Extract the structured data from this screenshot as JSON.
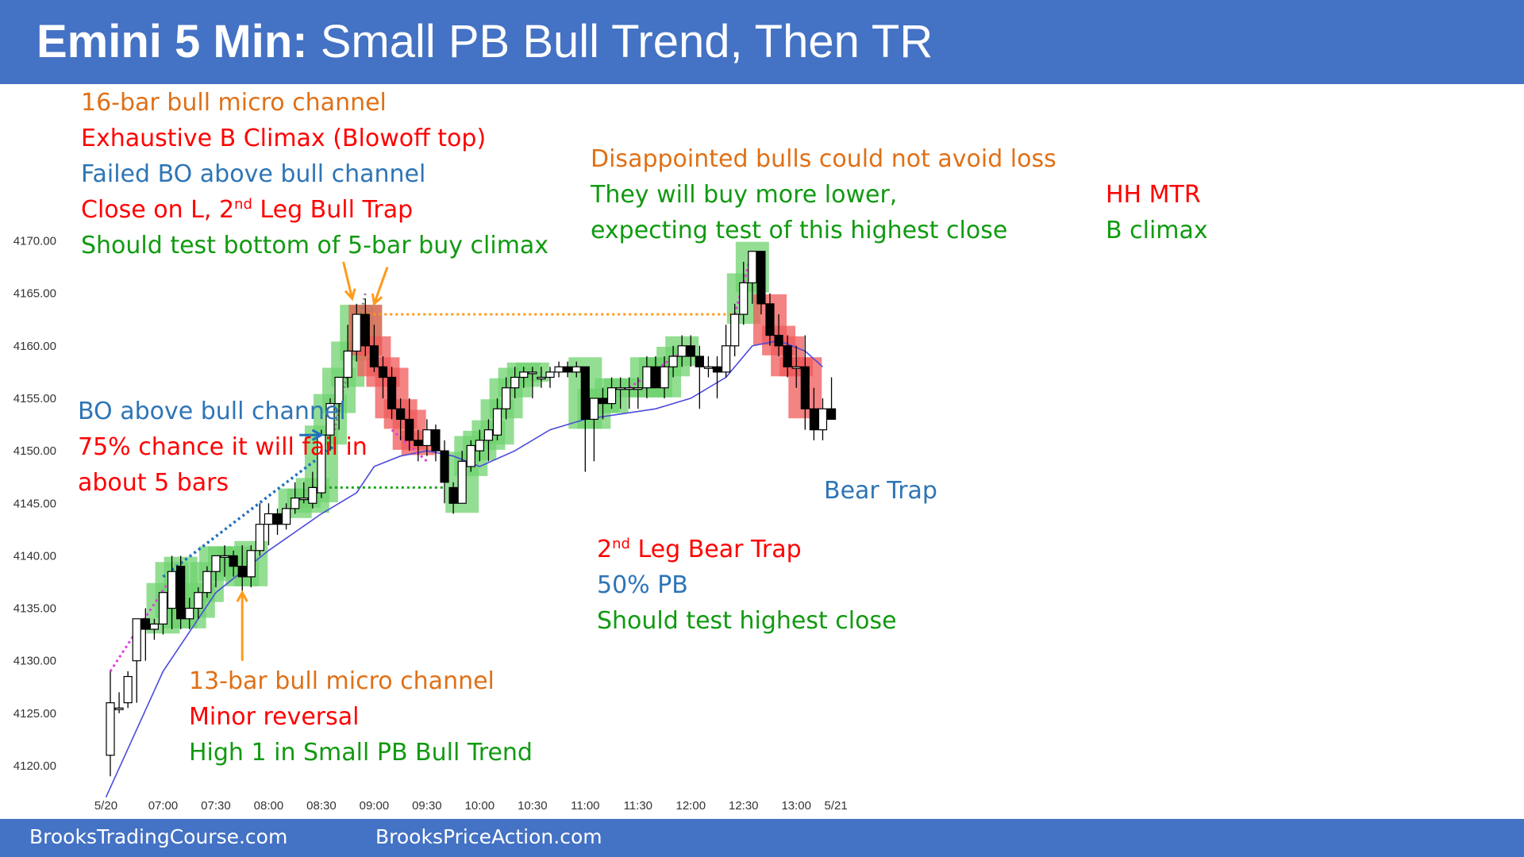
{
  "header": {
    "title_bold": "Emini 5 Min:",
    "title_rest": "Small PB Bull Trend, Then TR"
  },
  "footer": {
    "left": "BrooksTradingCourse.com",
    "right": "BrooksPriceAction.com"
  },
  "colors": {
    "header": "#4472c4",
    "bull_body": "#ffffff",
    "bear_body": "#000000",
    "green_highlight": "#6fd36f",
    "red_highlight": "#f05a5a",
    "ema": "#4b4bdc",
    "orange_line": "#ff9a1a",
    "green_line": "#1aa51a",
    "blue_line": "#1f6fbf",
    "magenta_line": "#e040e0",
    "gray_line": "#808080",
    "arrow_orange": "#ff9a1a",
    "arrow_blue": "#1f6fbf"
  },
  "annotations": {
    "a1": {
      "l1": "16-bar bull micro channel",
      "l2": "Exhaustive B Climax (Blowoff top)",
      "l3": "Failed BO above bull channel",
      "l4a": "Close on L, 2",
      "l4sup": "nd",
      "l4b": " Leg Bull Trap",
      "l5": "Should test bottom of 5-bar buy climax"
    },
    "a2": {
      "l1": "Disappointed bulls could not avoid loss",
      "l2": "They will buy more lower,",
      "l3": "expecting test of this highest close"
    },
    "a3": {
      "l1": "HH MTR",
      "l2": "B climax"
    },
    "a4": {
      "l1": "BO above bull channel",
      "l2": "75% chance it will fail in",
      "l3": "about 5 bars"
    },
    "a5": {
      "l1": "Bear Trap"
    },
    "a6": {
      "l1a": "2",
      "l1sup": "nd",
      "l1b": " Leg Bear Trap",
      "l2": "50% PB",
      "l3": "Should test highest close"
    },
    "a7": {
      "l1": "13-bar bull micro channel",
      "l2": "Minor reversal",
      "l3": "High 1 in Small PB Bull Trend"
    }
  },
  "chart_data": {
    "type": "candlestick",
    "y_ticks": [
      "4170.00",
      "4165.00",
      "4160.00",
      "4155.00",
      "4150.00",
      "4145.00",
      "4140.00",
      "4135.00",
      "4130.00",
      "4125.00",
      "4120.00"
    ],
    "y_tick_values": [
      4170,
      4165,
      4160,
      4155,
      4150,
      4145,
      4140,
      4135,
      4130,
      4125,
      4120
    ],
    "ylim": [
      4118,
      4172
    ],
    "x_ticks": [
      "5/20",
      "07:00",
      "07:30",
      "08:00",
      "08:30",
      "09:00",
      "09:30",
      "10:00",
      "10:30",
      "11:00",
      "11:30",
      "12:00",
      "12:30",
      "13:00",
      "5/21"
    ],
    "x_tick_bars": [
      -0.5,
      6,
      12,
      18,
      24,
      30,
      36,
      42,
      48,
      54,
      60,
      66,
      72,
      78,
      82.5
    ],
    "bars": [
      [
        4121,
        4129,
        4119,
        4126
      ],
      [
        4125.5,
        4127,
        4125,
        4125.5
      ],
      [
        4126,
        4129,
        4125.5,
        4128.5
      ],
      [
        4130,
        4134,
        4126,
        4134
      ],
      [
        4134,
        4135,
        4130,
        4133
      ],
      [
        4133,
        4134,
        4132,
        4133.5
      ],
      [
        4133.5,
        4136,
        4132.5,
        4136.5
      ],
      [
        4135,
        4140,
        4133,
        4138.5
      ],
      [
        4139,
        4140,
        4133,
        4134
      ],
      [
        4134,
        4136,
        4133,
        4135
      ],
      [
        4135,
        4137,
        4134,
        4136.5
      ],
      [
        4136.5,
        4139,
        4136,
        4138.5
      ],
      [
        4138.5,
        4140,
        4137,
        4140
      ],
      [
        4140,
        4141,
        4138,
        4140
      ],
      [
        4140,
        4140.5,
        4138,
        4139
      ],
      [
        4139,
        4141,
        4136,
        4138
      ],
      [
        4138,
        4141,
        4137,
        4140.5
      ],
      [
        4140.5,
        4145,
        4140,
        4143
      ],
      [
        4143,
        4145,
        4141,
        4144
      ],
      [
        4144,
        4144.5,
        4142,
        4143
      ],
      [
        4143,
        4145,
        4142.5,
        4144.5
      ],
      [
        4144.5,
        4147,
        4144,
        4145.5
      ],
      [
        4145.5,
        4147,
        4145,
        4145.5
      ],
      [
        4145,
        4148,
        4144.5,
        4146.5
      ],
      [
        4146,
        4152,
        4145.5,
        4151.5
      ],
      [
        4151.5,
        4155,
        4150,
        4154.5
      ],
      [
        4154.5,
        4157,
        4152,
        4157
      ],
      [
        4157,
        4162,
        4156,
        4159.5
      ],
      [
        4159.5,
        4164,
        4158.5,
        4163
      ],
      [
        4163,
        4164.5,
        4159,
        4160
      ],
      [
        4160,
        4162,
        4157.5,
        4158
      ],
      [
        4158,
        4159,
        4155,
        4157
      ],
      [
        4157,
        4158,
        4153,
        4154
      ],
      [
        4154,
        4155,
        4151,
        4153
      ],
      [
        4153,
        4155,
        4150,
        4151
      ],
      [
        4151,
        4152,
        4149,
        4150.5
      ],
      [
        4150.5,
        4153,
        4149.5,
        4152
      ],
      [
        4152,
        4152.5,
        4149,
        4150
      ],
      [
        4150,
        4151,
        4145,
        4147
      ],
      [
        4146.5,
        4147,
        4144,
        4145
      ],
      [
        4145,
        4150,
        4145,
        4149
      ],
      [
        4148.5,
        4151,
        4148,
        4150.5
      ],
      [
        4150,
        4152,
        4149,
        4151
      ],
      [
        4151,
        4153,
        4149,
        4152
      ],
      [
        4151.5,
        4155,
        4151,
        4154
      ],
      [
        4154,
        4157,
        4153,
        4156
      ],
      [
        4156,
        4158,
        4155,
        4157
      ],
      [
        4157,
        4158,
        4156,
        4157.5
      ],
      [
        4157.5,
        4158,
        4155,
        4157.5
      ],
      [
        4157,
        4158,
        4156,
        4157
      ],
      [
        4157,
        4158,
        4156,
        4157.5
      ],
      [
        4157.5,
        4158.5,
        4157,
        4158
      ],
      [
        4158,
        4158.5,
        4157,
        4157.5
      ],
      [
        4157.5,
        4158.5,
        4157,
        4158
      ],
      [
        4158,
        4158,
        4148,
        4153
      ],
      [
        4153,
        4155,
        4149,
        4155
      ],
      [
        4155,
        4156,
        4153,
        4154.5
      ],
      [
        4154.5,
        4157,
        4154,
        4156
      ],
      [
        4156,
        4157,
        4154,
        4156
      ],
      [
        4156,
        4157,
        4154,
        4156
      ],
      [
        4156,
        4157,
        4154,
        4156
      ],
      [
        4156,
        4159,
        4155,
        4158
      ],
      [
        4158,
        4159,
        4156,
        4156
      ],
      [
        4156,
        4159,
        4155,
        4158
      ],
      [
        4158,
        4160,
        4157,
        4159
      ],
      [
        4159,
        4161,
        4158,
        4160
      ],
      [
        4160,
        4161,
        4158,
        4159
      ],
      [
        4159,
        4160,
        4154,
        4158
      ],
      [
        4158,
        4159,
        4157,
        4158
      ],
      [
        4158,
        4159,
        4155,
        4157.5
      ],
      [
        4157.5,
        4162,
        4157,
        4160
      ],
      [
        4160,
        4164,
        4159,
        4163
      ],
      [
        4163,
        4168,
        4162,
        4166
      ],
      [
        4166,
        4169,
        4164,
        4169
      ],
      [
        4169,
        4169,
        4163,
        4164
      ],
      [
        4164,
        4165,
        4160,
        4161
      ],
      [
        4161,
        4163,
        4159,
        4160
      ],
      [
        4160,
        4161,
        4157,
        4158
      ],
      [
        4158,
        4160,
        4156,
        4158
      ],
      [
        4158,
        4161,
        4152,
        4154
      ],
      [
        4154,
        4156,
        4151,
        4152
      ],
      [
        4152,
        4155,
        4151,
        4154
      ],
      [
        4154,
        4157,
        4153,
        4153
      ]
    ],
    "green_highlight_bars": [
      6,
      7,
      8,
      9,
      10,
      11,
      12,
      13,
      14,
      15,
      16,
      21,
      22,
      23,
      24,
      25,
      26,
      27,
      28,
      29,
      40,
      41,
      42,
      43,
      44,
      45,
      46,
      47,
      48,
      54,
      55,
      56,
      57,
      58,
      61,
      62,
      63,
      64,
      65,
      72,
      73
    ],
    "red_highlight_bars": [
      29,
      30,
      31,
      32,
      33,
      34,
      35,
      75,
      76,
      77,
      78,
      79
    ],
    "ema": [
      [
        -0.5,
        4117
      ],
      [
        6,
        4129
      ],
      [
        12,
        4136.5
      ],
      [
        18,
        4140.5
      ],
      [
        24,
        4144
      ],
      [
        26,
        4145
      ],
      [
        28,
        4146
      ],
      [
        30,
        4148.5
      ],
      [
        33,
        4149.5
      ],
      [
        36,
        4150
      ],
      [
        39,
        4149.5
      ],
      [
        42,
        4148.5
      ],
      [
        46,
        4150
      ],
      [
        50,
        4152
      ],
      [
        54,
        4153
      ],
      [
        58,
        4153.5
      ],
      [
        62,
        4154
      ],
      [
        66,
        4155
      ],
      [
        70,
        4157
      ],
      [
        73,
        4160
      ],
      [
        76,
        4160.5
      ],
      [
        79,
        4159.5
      ],
      [
        81,
        4158
      ]
    ],
    "lines": [
      {
        "style": "orange-dotted",
        "from": [
          28,
          4163
        ],
        "to": [
          71,
          4163
        ]
      },
      {
        "style": "green-dotted",
        "from": [
          23,
          4146.5
        ],
        "to": [
          38,
          4146.5
        ]
      },
      {
        "style": "blue-dotted",
        "from": [
          6,
          4138
        ],
        "to": [
          25.5,
          4150.5
        ]
      },
      {
        "style": "magenta-dotted",
        "from": [
          0,
          4129
        ],
        "to": [
          7,
          4138
        ]
      },
      {
        "style": "magenta-dotted",
        "from": [
          32,
          4152
        ],
        "to": [
          36,
          4149
        ]
      },
      {
        "style": "magenta-dotted",
        "from": [
          59,
          4156
        ],
        "to": [
          66,
          4160
        ]
      },
      {
        "style": "magenta-dotted",
        "from": [
          71,
          4163
        ],
        "to": [
          73,
          4169
        ]
      },
      {
        "style": "gray-dotted",
        "from": [
          25.5,
          4152
        ],
        "to": [
          29,
          4165
        ]
      }
    ],
    "arrows": [
      {
        "color": "orange",
        "from": [
          26.5,
          4168
        ],
        "to": [
          27.5,
          4164.5
        ]
      },
      {
        "color": "orange",
        "from": [
          31.5,
          4167.5
        ],
        "to": [
          30,
          4164
        ]
      },
      {
        "color": "orange",
        "from": [
          15,
          4130
        ],
        "to": [
          15,
          4136.5
        ]
      },
      {
        "color": "blue",
        "from": [
          21.5,
          4151.5
        ],
        "to": [
          24,
          4151.5
        ]
      }
    ]
  }
}
